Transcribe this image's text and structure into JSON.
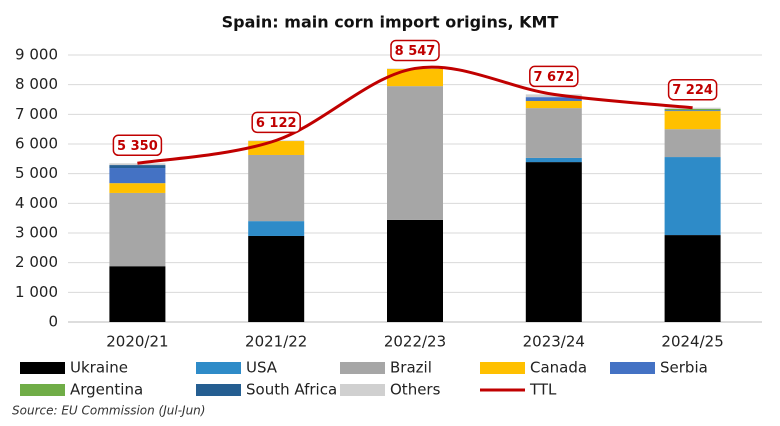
{
  "chart_data": {
    "type": "bar",
    "stacked": true,
    "title": "Spain: main corn import origins, KMT",
    "source": "Source: EU Commission (Jul-Jun)",
    "categories": [
      "2020/21",
      "2021/22",
      "2022/23",
      "2023/24",
      "2024/25"
    ],
    "ylim": [
      0,
      9000
    ],
    "yticks": [
      0,
      {
        "value": 1000,
        "label": "1 000"
      },
      {
        "value": 2000,
        "label": "2 000"
      },
      {
        "value": 3000,
        "label": "3 000"
      },
      {
        "value": 4000,
        "label": "4 000"
      },
      {
        "value": 5000,
        "label": "5 000"
      },
      {
        "value": 6000,
        "label": "6 000"
      },
      {
        "value": 7000,
        "label": "7 000"
      },
      {
        "value": 8000,
        "label": "8 000"
      },
      {
        "value": 9000,
        "label": "9 000"
      }
    ],
    "grid": true,
    "legend": "bottom",
    "series": [
      {
        "name": "Ukraine",
        "color": "#000000",
        "values": [
          1880,
          2900,
          3440,
          5390,
          2930
        ]
      },
      {
        "name": "USA",
        "color": "#2e8bc8",
        "values": [
          0,
          500,
          0,
          140,
          2630
        ]
      },
      {
        "name": "Brazil",
        "color": "#a6a6a6",
        "values": [
          2470,
          2230,
          4510,
          1680,
          940
        ]
      },
      {
        "name": "Canada",
        "color": "#ffc000",
        "values": [
          330,
          470,
          580,
          240,
          610
        ]
      },
      {
        "name": "Serbia",
        "color": "#4472c4",
        "values": [
          510,
          0,
          0,
          130,
          30
        ]
      },
      {
        "name": "Argentina",
        "color": "#70ad47",
        "values": [
          0,
          0,
          0,
          0,
          40
        ]
      },
      {
        "name": "South Africa",
        "color": "#255e91",
        "values": [
          100,
          0,
          0,
          0,
          0
        ]
      },
      {
        "name": "Others",
        "color": "#d0d0d0",
        "values": [
          60,
          22,
          17,
          92,
          44
        ]
      },
      {
        "name": "TTL",
        "type": "line",
        "color": "#c00000",
        "values": [
          5350,
          6122,
          8547,
          7672,
          7224
        ],
        "value_labels": [
          "5 350",
          "6 122",
          "8 547",
          "7 672",
          "7 224"
        ]
      }
    ]
  }
}
